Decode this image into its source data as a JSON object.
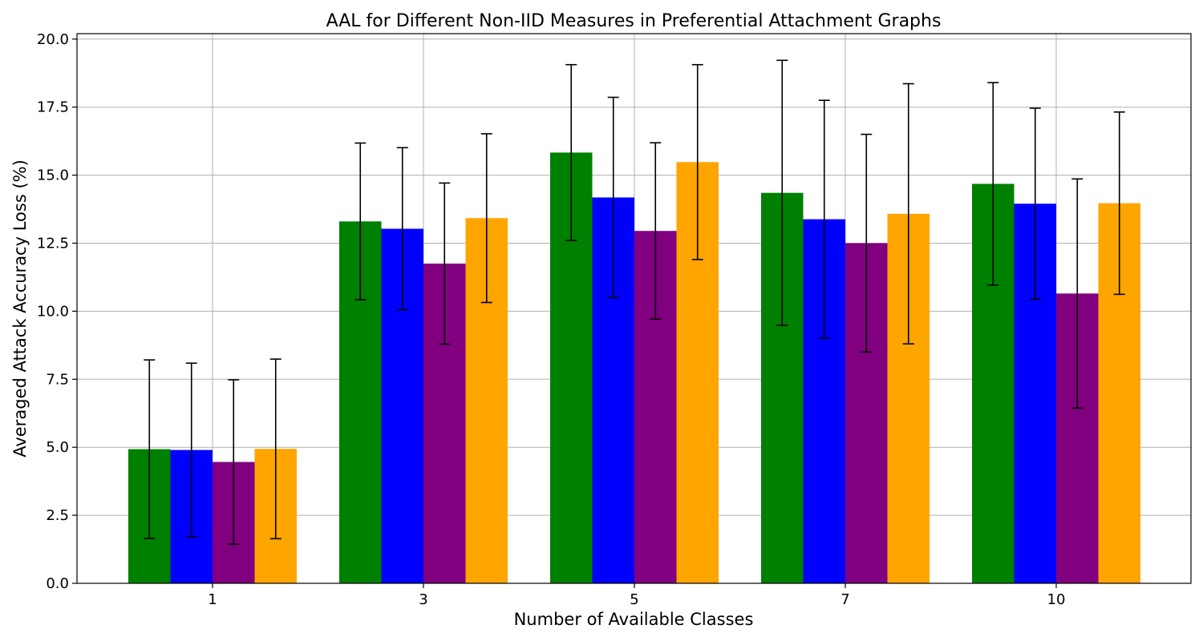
{
  "chart_data": {
    "type": "bar",
    "title": "AAL for Different Non-IID Measures in Preferential Attachment Graphs",
    "xlabel": "Number of Available Classes",
    "ylabel": "Averaged Attack Accuracy Loss (%)",
    "categories": [
      "1",
      "3",
      "5",
      "7",
      "10"
    ],
    "ylim": [
      0,
      20.2
    ],
    "yticks": [
      "0.0",
      "2.5",
      "5.0",
      "7.5",
      "10.0",
      "12.5",
      "15.0",
      "17.5",
      "20.0"
    ],
    "grid": true,
    "legend": "none",
    "error_bars": true,
    "series": [
      {
        "color": "#008000",
        "values": [
          4.93,
          13.3,
          15.83,
          14.35,
          14.68
        ],
        "errors": [
          3.28,
          2.88,
          3.23,
          4.87,
          3.72
        ]
      },
      {
        "color": "#0000ff",
        "values": [
          4.9,
          13.03,
          14.18,
          13.38,
          13.95
        ],
        "errors": [
          3.19,
          2.98,
          3.68,
          4.37,
          3.51
        ]
      },
      {
        "color": "#800080",
        "values": [
          4.46,
          11.75,
          12.95,
          12.5,
          10.65
        ],
        "errors": [
          3.02,
          2.96,
          3.24,
          4.0,
          4.21
        ]
      },
      {
        "color": "#ffa500",
        "values": [
          4.94,
          13.42,
          15.48,
          13.58,
          13.97
        ],
        "errors": [
          3.3,
          3.1,
          3.58,
          4.78,
          3.35
        ]
      }
    ]
  }
}
